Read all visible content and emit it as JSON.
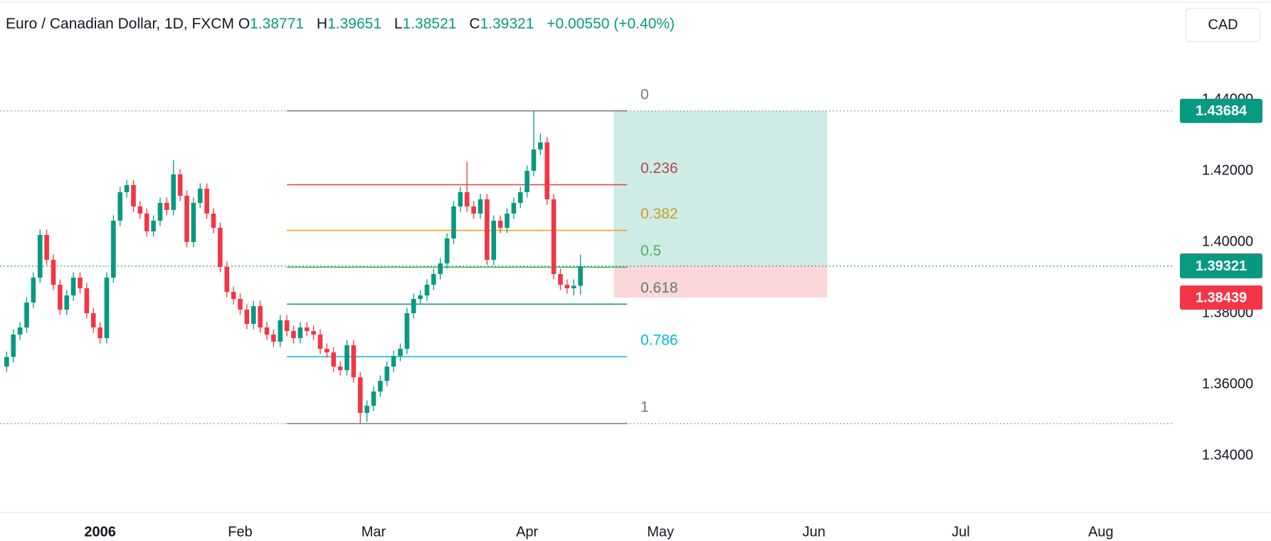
{
  "chart_data": {
    "type": "candlestick",
    "legend": {
      "symbol": "Euro / Canadian Dollar, 1D, FXCM",
      "ohlc_labels": [
        "O",
        "H",
        "L",
        "C"
      ],
      "change": "+0.00550 (+0.40%)"
    },
    "currency": "CAD",
    "up_color": "#089981",
    "down_color": "#f23645",
    "x": [
      0,
      1,
      2,
      3,
      4,
      5,
      6,
      7,
      8,
      9,
      10,
      11,
      12,
      13,
      14,
      15,
      16,
      17,
      18,
      19,
      20,
      21,
      22,
      23,
      24,
      25,
      26,
      27,
      28,
      29,
      30,
      31,
      32,
      33,
      34,
      35,
      36,
      37,
      38,
      39,
      40,
      41,
      42,
      43,
      44,
      45,
      46,
      47,
      48,
      49,
      50,
      51,
      52,
      53,
      54,
      55,
      56,
      57,
      58,
      59,
      60,
      61,
      62,
      63,
      64,
      65,
      66,
      67,
      68,
      69,
      70,
      71,
      72,
      73,
      74,
      75,
      76,
      77,
      78,
      79,
      80,
      81,
      82,
      83,
      84,
      85,
      86
    ],
    "open": [
      1.365,
      1.3677,
      1.374,
      1.376,
      1.383,
      1.39,
      1.402,
      1.395,
      1.388,
      1.381,
      1.385,
      1.39,
      1.387,
      1.38,
      1.376,
      1.373,
      1.39,
      1.406,
      1.414,
      1.416,
      1.41,
      1.408,
      1.403,
      1.406,
      1.411,
      1.409,
      1.419,
      1.413,
      1.4,
      1.411,
      1.415,
      1.408,
      1.404,
      1.393,
      1.386,
      1.384,
      1.381,
      1.377,
      1.382,
      1.376,
      1.374,
      1.372,
      1.378,
      1.375,
      1.373,
      1.376,
      1.375,
      1.374,
      1.37,
      1.369,
      1.365,
      1.364,
      1.371,
      1.362,
      1.352,
      1.354,
      1.358,
      1.361,
      1.365,
      1.368,
      1.37,
      1.38,
      1.384,
      1.385,
      1.388,
      1.391,
      1.394,
      1.401,
      1.41,
      1.414,
      1.41,
      1.408,
      1.412,
      1.395,
      1.406,
      1.404,
      1.408,
      1.411,
      1.414,
      1.42,
      1.426,
      1.428,
      1.412,
      1.391,
      1.388,
      1.387,
      1.38771
    ],
    "high": [
      1.3692,
      1.3755,
      1.3775,
      1.3845,
      1.3915,
      1.4035,
      1.4035,
      1.3965,
      1.3895,
      1.3865,
      1.3915,
      1.3915,
      1.3885,
      1.3815,
      1.3775,
      1.3915,
      1.4075,
      1.4155,
      1.4175,
      1.4175,
      1.4115,
      1.4095,
      1.4075,
      1.4125,
      1.4125,
      1.423,
      1.4205,
      1.4145,
      1.4125,
      1.4165,
      1.4165,
      1.4095,
      1.4055,
      1.3945,
      1.3875,
      1.3855,
      1.3825,
      1.3835,
      1.3835,
      1.3775,
      1.3755,
      1.3795,
      1.3795,
      1.3765,
      1.3775,
      1.3775,
      1.3765,
      1.3755,
      1.3715,
      1.3705,
      1.3665,
      1.3725,
      1.3725,
      1.3635,
      1.3555,
      1.3595,
      1.3625,
      1.3665,
      1.3695,
      1.3715,
      1.3815,
      1.3855,
      1.3865,
      1.3895,
      1.3925,
      1.3955,
      1.4025,
      1.4115,
      1.4155,
      1.4225,
      1.4115,
      1.4135,
      1.4135,
      1.4075,
      1.4075,
      1.4095,
      1.4125,
      1.4155,
      1.4215,
      1.4368,
      1.4305,
      1.4295,
      1.4135,
      1.3925,
      1.3895,
      1.3895,
      1.39651
    ],
    "low": [
      1.3635,
      1.3662,
      1.3725,
      1.3745,
      1.3815,
      1.3885,
      1.3935,
      1.3865,
      1.3795,
      1.3795,
      1.3835,
      1.3855,
      1.3785,
      1.3745,
      1.3715,
      1.3715,
      1.3885,
      1.4045,
      1.4125,
      1.4085,
      1.4065,
      1.4015,
      1.4015,
      1.4045,
      1.4075,
      1.4075,
      1.4115,
      1.3985,
      1.3985,
      1.4095,
      1.4065,
      1.4025,
      1.3915,
      1.3845,
      1.3825,
      1.3795,
      1.3755,
      1.3755,
      1.3745,
      1.3725,
      1.3705,
      1.3705,
      1.3735,
      1.3715,
      1.3715,
      1.3735,
      1.3725,
      1.3685,
      1.3675,
      1.3635,
      1.3625,
      1.3625,
      1.3605,
      1.349,
      1.3495,
      1.3525,
      1.3565,
      1.3595,
      1.3635,
      1.3665,
      1.3685,
      1.3785,
      1.3825,
      1.3835,
      1.3865,
      1.3895,
      1.3925,
      1.3995,
      1.4085,
      1.4085,
      1.4065,
      1.4065,
      1.3935,
      1.3935,
      1.4025,
      1.4025,
      1.4065,
      1.4095,
      1.4125,
      1.4185,
      1.4245,
      1.4105,
      1.3895,
      1.3865,
      1.3855,
      1.385,
      1.38521
    ],
    "close": [
      1.3677,
      1.374,
      1.376,
      1.383,
      1.39,
      1.402,
      1.395,
      1.388,
      1.381,
      1.385,
      1.39,
      1.387,
      1.38,
      1.376,
      1.373,
      1.39,
      1.406,
      1.414,
      1.416,
      1.41,
      1.408,
      1.403,
      1.406,
      1.411,
      1.409,
      1.419,
      1.413,
      1.4,
      1.411,
      1.415,
      1.408,
      1.404,
      1.393,
      1.386,
      1.384,
      1.381,
      1.377,
      1.382,
      1.376,
      1.374,
      1.372,
      1.378,
      1.375,
      1.373,
      1.376,
      1.375,
      1.374,
      1.37,
      1.369,
      1.365,
      1.364,
      1.371,
      1.362,
      1.352,
      1.354,
      1.358,
      1.361,
      1.365,
      1.368,
      1.37,
      1.38,
      1.384,
      1.385,
      1.388,
      1.391,
      1.394,
      1.401,
      1.41,
      1.414,
      1.41,
      1.408,
      1.412,
      1.395,
      1.406,
      1.404,
      1.408,
      1.411,
      1.414,
      1.42,
      1.426,
      1.428,
      1.412,
      1.391,
      1.388,
      1.387,
      1.38771,
      1.39321
    ],
    "xlim": [
      -1,
      175
    ],
    "xticks": [
      {
        "value": 14,
        "label": "2006"
      },
      {
        "value": 35,
        "label": "Feb"
      },
      {
        "value": 55,
        "label": "Mar"
      },
      {
        "value": 78,
        "label": "Apr"
      },
      {
        "value": 98,
        "label": "May"
      },
      {
        "value": 121,
        "label": "Jun"
      },
      {
        "value": 143,
        "label": "Jul"
      },
      {
        "value": 164,
        "label": "Aug"
      }
    ],
    "ylim": [
      1.324,
      1.468
    ],
    "yticks": [
      {
        "value": 1.34,
        "label": "1.34000"
      },
      {
        "value": 1.36,
        "label": "1.36000"
      },
      {
        "value": 1.38,
        "label": "1.38000"
      },
      {
        "value": 1.4,
        "label": "1.40000"
      },
      {
        "value": 1.42,
        "label": "1.42000"
      },
      {
        "value": 1.44,
        "label": "1.44000"
      }
    ],
    "fib": {
      "x": [
        42,
        93
      ],
      "label_x": 95,
      "high": 1.43684,
      "low": 1.349,
      "levels": [
        {
          "ratio": 0,
          "color": "#787b86",
          "text_color": "#787b86"
        },
        {
          "ratio": 0.236,
          "color": "#f23645",
          "text_color": "#b2474f"
        },
        {
          "ratio": 0.382,
          "color": "#ff9800",
          "text_color": "#c8a11a"
        },
        {
          "ratio": 0.5,
          "color": "#4caf50",
          "text_color": "#4caf50"
        },
        {
          "ratio": 0.618,
          "color": "#089981",
          "text_color": "#5b7c6a"
        },
        {
          "ratio": 0.786,
          "color": "#00bcd4",
          "text_color": "#00bcd4"
        },
        {
          "ratio": 1,
          "color": "#787b86",
          "text_color": "#787b86"
        }
      ]
    },
    "position": {
      "x": [
        91,
        123
      ],
      "entry": 1.39342,
      "target": 1.43684,
      "stop": 1.38439
    }
  }
}
